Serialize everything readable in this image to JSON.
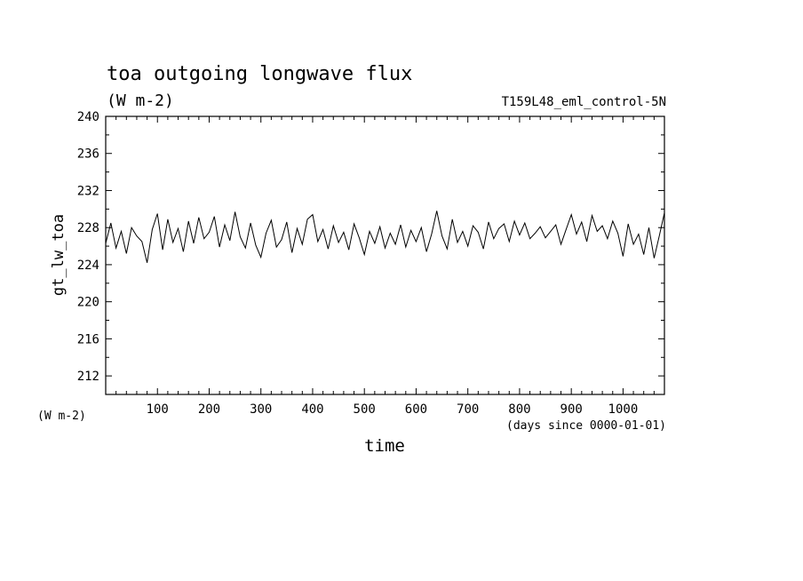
{
  "chart_data": {
    "type": "line",
    "title": "toa outgoing longwave flux",
    "units": "(W m-2)",
    "run_label": "T159L48_eml_control-5N",
    "ylabel": "gt_lw_toa",
    "yunit_label": "(W m-2)",
    "xlabel": "time",
    "xunit_label": "(days since 0000-01-01)",
    "xlim": [
      0,
      1080
    ],
    "ylim": [
      210,
      240
    ],
    "x_ticks": [
      100,
      200,
      300,
      400,
      500,
      600,
      700,
      800,
      900,
      1000
    ],
    "y_ticks": [
      212,
      216,
      220,
      224,
      228,
      232,
      236,
      240
    ],
    "grid": false,
    "series": [
      {
        "x": [
          0,
          10,
          20,
          30,
          40,
          50,
          60,
          70,
          80,
          90,
          100,
          110,
          120,
          130,
          140,
          150,
          160,
          170,
          180,
          190,
          200,
          210,
          220,
          230,
          240,
          250,
          260,
          270,
          280,
          290,
          300,
          310,
          320,
          330,
          340,
          350,
          360,
          370,
          380,
          390,
          400,
          410,
          420,
          430,
          440,
          450,
          460,
          470,
          480,
          490,
          500,
          510,
          520,
          530,
          540,
          550,
          560,
          570,
          580,
          590,
          600,
          610,
          620,
          630,
          640,
          650,
          660,
          670,
          680,
          690,
          700,
          710,
          720,
          730,
          740,
          750,
          760,
          770,
          780,
          790,
          800,
          810,
          820,
          830,
          840,
          850,
          860,
          870,
          880,
          890,
          900,
          910,
          920,
          930,
          940,
          950,
          960,
          970,
          980,
          990,
          1000,
          1010,
          1020,
          1030,
          1040,
          1050,
          1060,
          1070,
          1080
        ],
        "y": [
          226.3,
          228.5,
          225.8,
          227.6,
          225.2,
          228.0,
          227.1,
          226.5,
          224.2,
          227.8,
          229.5,
          225.6,
          228.9,
          226.4,
          227.9,
          225.4,
          228.7,
          226.3,
          229.1,
          226.8,
          227.5,
          229.2,
          225.9,
          228.3,
          226.6,
          229.7,
          227.0,
          225.8,
          228.5,
          226.1,
          224.8,
          227.4,
          228.8,
          225.9,
          226.7,
          228.6,
          225.3,
          227.9,
          226.2,
          228.9,
          229.4,
          226.5,
          227.8,
          225.7,
          228.2,
          226.4,
          227.5,
          225.6,
          228.4,
          226.9,
          225.1,
          227.6,
          226.3,
          228.1,
          225.8,
          227.4,
          226.2,
          228.3,
          225.9,
          227.7,
          226.5,
          228.0,
          225.4,
          227.3,
          229.8,
          227.1,
          225.7,
          228.9,
          226.4,
          227.6,
          226.0,
          228.2,
          227.5,
          225.7,
          228.6,
          226.8,
          227.9,
          228.4,
          226.5,
          228.7,
          227.2,
          228.5,
          226.8,
          227.4,
          228.1,
          226.9,
          227.6,
          228.3,
          226.2,
          227.8,
          229.4,
          227.3,
          228.6,
          226.5,
          229.3,
          227.6,
          228.2,
          226.8,
          228.7,
          227.4,
          224.9,
          228.4,
          226.2,
          227.3,
          225.1,
          228.0,
          224.7,
          227.1,
          229.6
        ]
      }
    ]
  }
}
